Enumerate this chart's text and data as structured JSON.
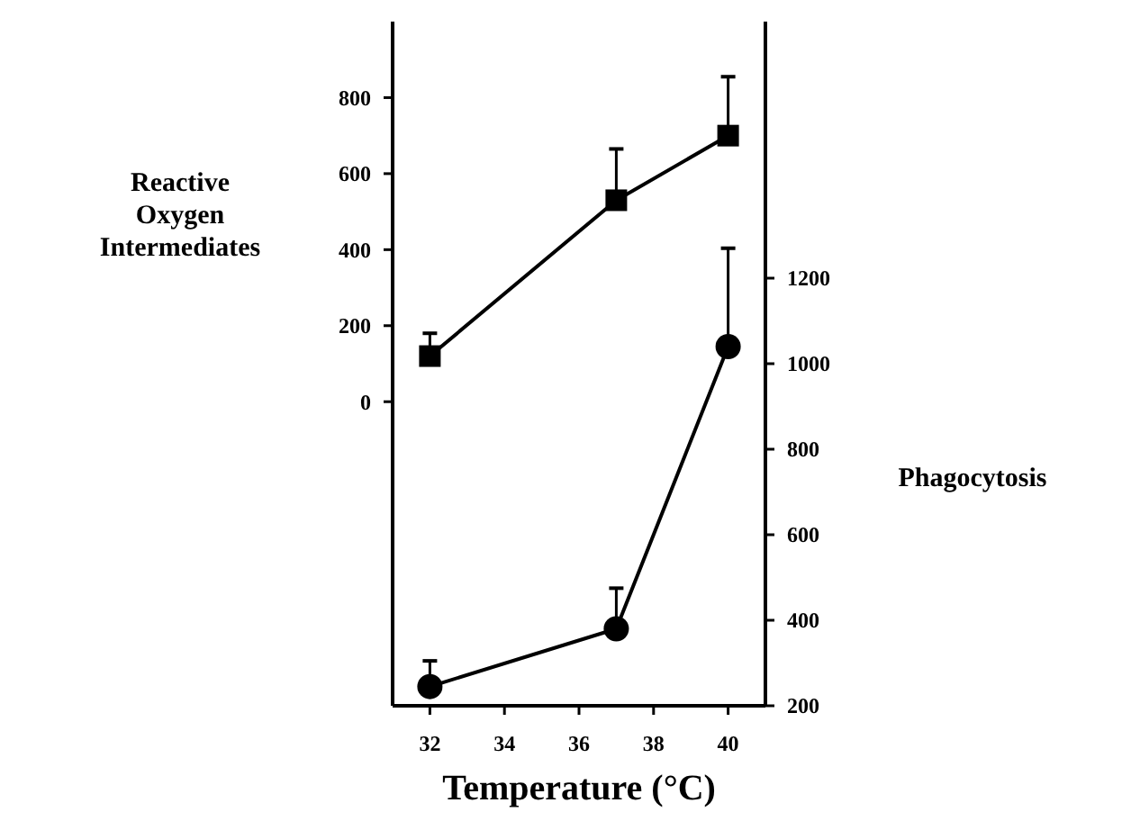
{
  "chart_data": {
    "type": "line",
    "xlabel": "Temperature (°C)",
    "ylabel": "Reactive\nOxygen\nIntermediates",
    "y2label": "Phagocytosis",
    "x": [
      32,
      37,
      40
    ],
    "xlim": [
      31,
      41
    ],
    "xticks": [
      32,
      34,
      36,
      38,
      40
    ],
    "ylim": [
      -800,
      1000
    ],
    "yticks": [
      0,
      200,
      400,
      600,
      800
    ],
    "y2lim": [
      200,
      1800
    ],
    "y2ticks": [
      200,
      400,
      600,
      800,
      1000,
      1200
    ],
    "line_style": "solid",
    "series": [
      {
        "color": "#000000",
        "marker": "square",
        "values": [
          120,
          530,
          700
        ],
        "errors": [
          [
            120,
            180
          ],
          [
            530,
            665
          ],
          [
            700,
            855
          ]
        ]
      },
      {
        "color": "#000000",
        "marker": "circle",
        "axis": "y2",
        "values": [
          245,
          380,
          1040
        ],
        "errors": [
          [
            245,
            305
          ],
          [
            380,
            475
          ],
          [
            1040,
            1270
          ]
        ]
      }
    ]
  }
}
